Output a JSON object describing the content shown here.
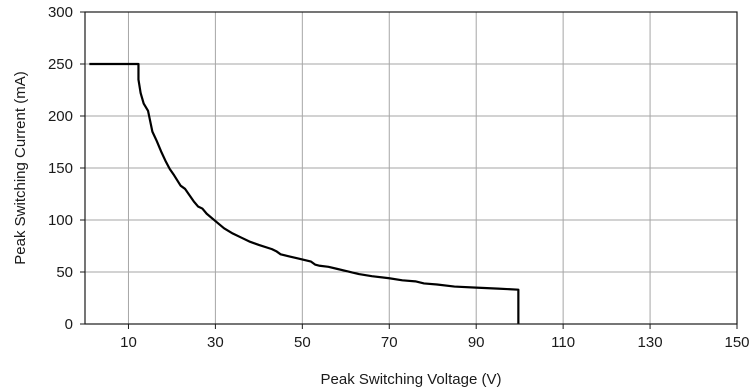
{
  "chart_data": {
    "type": "line",
    "title": "",
    "xlabel": "Peak Switching Voltage (V)",
    "ylabel": "Peak Switching Current (mA)",
    "xlim": [
      0,
      150
    ],
    "ylim": [
      0,
      300
    ],
    "xticks": [
      10,
      30,
      50,
      70,
      90,
      110,
      130,
      150
    ],
    "yticks": [
      0,
      50,
      100,
      150,
      200,
      250,
      300
    ],
    "grid": true,
    "line_color": "#000000",
    "grid_color": "#a6a6a6",
    "series": [
      {
        "x": [
          1,
          12.3,
          12.3,
          12.8,
          13.5,
          14.5,
          15,
          15.5,
          16.5,
          17.5,
          18.5,
          19.5,
          20.5,
          22,
          23,
          24,
          25,
          26,
          27,
          28,
          30,
          32,
          34,
          36,
          38,
          40,
          43,
          44,
          45,
          47,
          49,
          52,
          53,
          54,
          56,
          58,
          60,
          63,
          66,
          70,
          73,
          76,
          78,
          81,
          85,
          90,
          95,
          99.7,
          99.7
        ],
        "y": [
          250,
          250,
          235,
          222,
          212,
          205,
          195,
          185,
          176,
          166,
          157,
          149,
          143,
          133,
          130,
          124,
          118,
          113,
          111,
          106,
          99,
          92,
          87,
          83,
          79,
          76,
          72,
          70,
          67,
          65,
          63,
          60,
          57,
          56,
          55,
          53,
          51,
          48,
          46,
          44,
          42,
          41,
          39,
          38,
          36,
          35,
          34,
          33,
          0
        ]
      }
    ]
  }
}
